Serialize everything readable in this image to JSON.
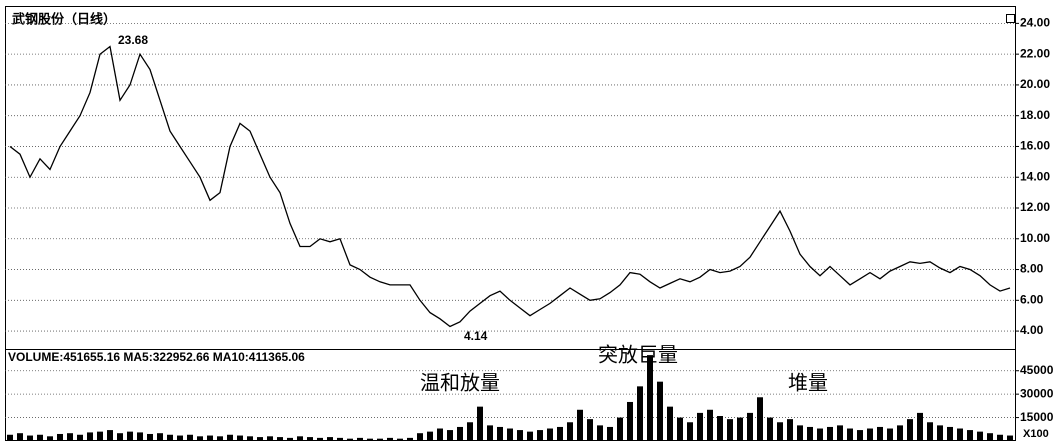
{
  "chart_data": [
    {
      "type": "line",
      "title": "武钢股份（日线）",
      "color": "#000000",
      "grid": true,
      "categories": [
        null,
        null,
        null,
        null,
        null,
        null,
        null,
        null,
        null,
        null,
        null,
        null,
        null,
        null,
        null,
        null,
        null,
        null,
        null,
        null,
        null,
        null,
        null,
        null,
        null,
        null,
        null,
        null,
        null,
        null,
        null,
        null,
        null,
        null,
        null,
        null,
        null,
        null,
        null,
        null,
        null,
        null,
        null,
        null,
        null,
        null,
        null,
        null,
        null,
        null,
        null,
        null,
        null,
        null,
        null,
        null,
        null,
        null,
        null,
        null,
        null,
        null,
        null,
        null,
        null,
        null,
        null,
        null,
        null,
        null,
        null,
        null,
        null,
        null,
        null,
        null,
        null,
        null,
        null,
        null,
        null,
        null,
        null,
        null,
        null,
        null,
        null,
        null,
        null,
        null,
        null,
        null,
        null,
        null,
        null,
        null,
        null,
        null,
        null,
        null,
        null
      ],
      "values": [
        16,
        15.5,
        14,
        15.2,
        14.5,
        16,
        17,
        18,
        19.5,
        22,
        22.5,
        19,
        20,
        22,
        21,
        19,
        17,
        16,
        15,
        14,
        12.5,
        13,
        16,
        17.5,
        17,
        15.5,
        14,
        13,
        11,
        9.5,
        9.5,
        10,
        9.8,
        10,
        8.3,
        8,
        7.5,
        7.2,
        7,
        7,
        7,
        6,
        5.2,
        4.8,
        4.3,
        4.6,
        5.3,
        5.8,
        6.3,
        6.6,
        6,
        5.5,
        5,
        5.4,
        5.8,
        6.3,
        6.8,
        6.4,
        6,
        6.1,
        6.5,
        7,
        7.8,
        7.7,
        7.2,
        6.8,
        7.1,
        7.4,
        7.2,
        7.5,
        8,
        7.8,
        7.9,
        8.2,
        8.8,
        9.8,
        10.8,
        11.8,
        10.5,
        9,
        8.2,
        7.6,
        8.2,
        7.6,
        7,
        7.4,
        7.8,
        7.4,
        7.9,
        8.2,
        8.5,
        8.4,
        8.5,
        8.1,
        7.8,
        8.2,
        8,
        7.6,
        7,
        6.6,
        6.8
      ],
      "ylim": [
        2.9,
        25.0
      ],
      "yticks": [
        {
          "value": 4,
          "label": "4.00"
        },
        {
          "value": 6,
          "label": "6.00"
        },
        {
          "value": 8,
          "label": "8.00"
        },
        {
          "value": 10,
          "label": "10.00"
        },
        {
          "value": 12,
          "label": "12.00"
        },
        {
          "value": 14,
          "label": "14.00"
        },
        {
          "value": 16,
          "label": "16.00"
        },
        {
          "value": 18,
          "label": "18.00"
        },
        {
          "value": 20,
          "label": "20.00"
        },
        {
          "value": 22,
          "label": "22.00"
        },
        {
          "value": 24,
          "label": "24.00"
        }
      ],
      "annotations": [
        "23.68",
        "4.14"
      ]
    },
    {
      "type": "bar",
      "title": "VOLUME:451655.16 MA5:322952.66 MA10:411365.06",
      "color": "#000000",
      "grid": true,
      "categories": [
        null,
        null,
        null,
        null,
        null,
        null,
        null,
        null,
        null,
        null,
        null,
        null,
        null,
        null,
        null,
        null,
        null,
        null,
        null,
        null,
        null,
        null,
        null,
        null,
        null,
        null,
        null,
        null,
        null,
        null,
        null,
        null,
        null,
        null,
        null,
        null,
        null,
        null,
        null,
        null,
        null,
        null,
        null,
        null,
        null,
        null,
        null,
        null,
        null,
        null,
        null,
        null,
        null,
        null,
        null,
        null,
        null,
        null,
        null,
        null,
        null,
        null,
        null,
        null,
        null,
        null,
        null,
        null,
        null,
        null,
        null,
        null,
        null,
        null,
        null,
        null,
        null,
        null,
        null,
        null,
        null,
        null,
        null,
        null,
        null,
        null,
        null,
        null,
        null,
        null,
        null,
        null,
        null,
        null,
        null,
        null,
        null,
        null,
        null,
        null,
        null
      ],
      "values": [
        4000,
        5000,
        3500,
        4000,
        3000,
        4500,
        5000,
        4000,
        5500,
        6000,
        7000,
        5000,
        6000,
        5500,
        4500,
        5000,
        4000,
        3500,
        4000,
        3000,
        3500,
        3000,
        4000,
        3500,
        3000,
        2500,
        3000,
        2500,
        2000,
        3000,
        2500,
        2000,
        2500,
        2000,
        1500,
        2000,
        1500,
        1500,
        2000,
        1500,
        2000,
        5000,
        6000,
        8000,
        7000,
        9000,
        12000,
        22000,
        10000,
        9000,
        8000,
        7000,
        6000,
        7000,
        8000,
        9000,
        12000,
        20000,
        14000,
        10000,
        9000,
        15000,
        25000,
        35000,
        55000,
        38000,
        22000,
        15000,
        12000,
        18000,
        20000,
        16000,
        14000,
        15000,
        18000,
        28000,
        15000,
        12000,
        14000,
        10000,
        9000,
        8000,
        9000,
        10000,
        8000,
        7000,
        8000,
        9000,
        8000,
        10000,
        14000,
        18000,
        12000,
        10000,
        9000,
        8000,
        7000,
        6000,
        5000,
        4000,
        3500
      ],
      "ylim": [
        0,
        57000
      ],
      "yticks": [
        15000,
        30000,
        45000
      ],
      "axis_unit": "X100",
      "annotations": [
        "温和放量",
        "突放巨量",
        "堆量"
      ]
    }
  ]
}
